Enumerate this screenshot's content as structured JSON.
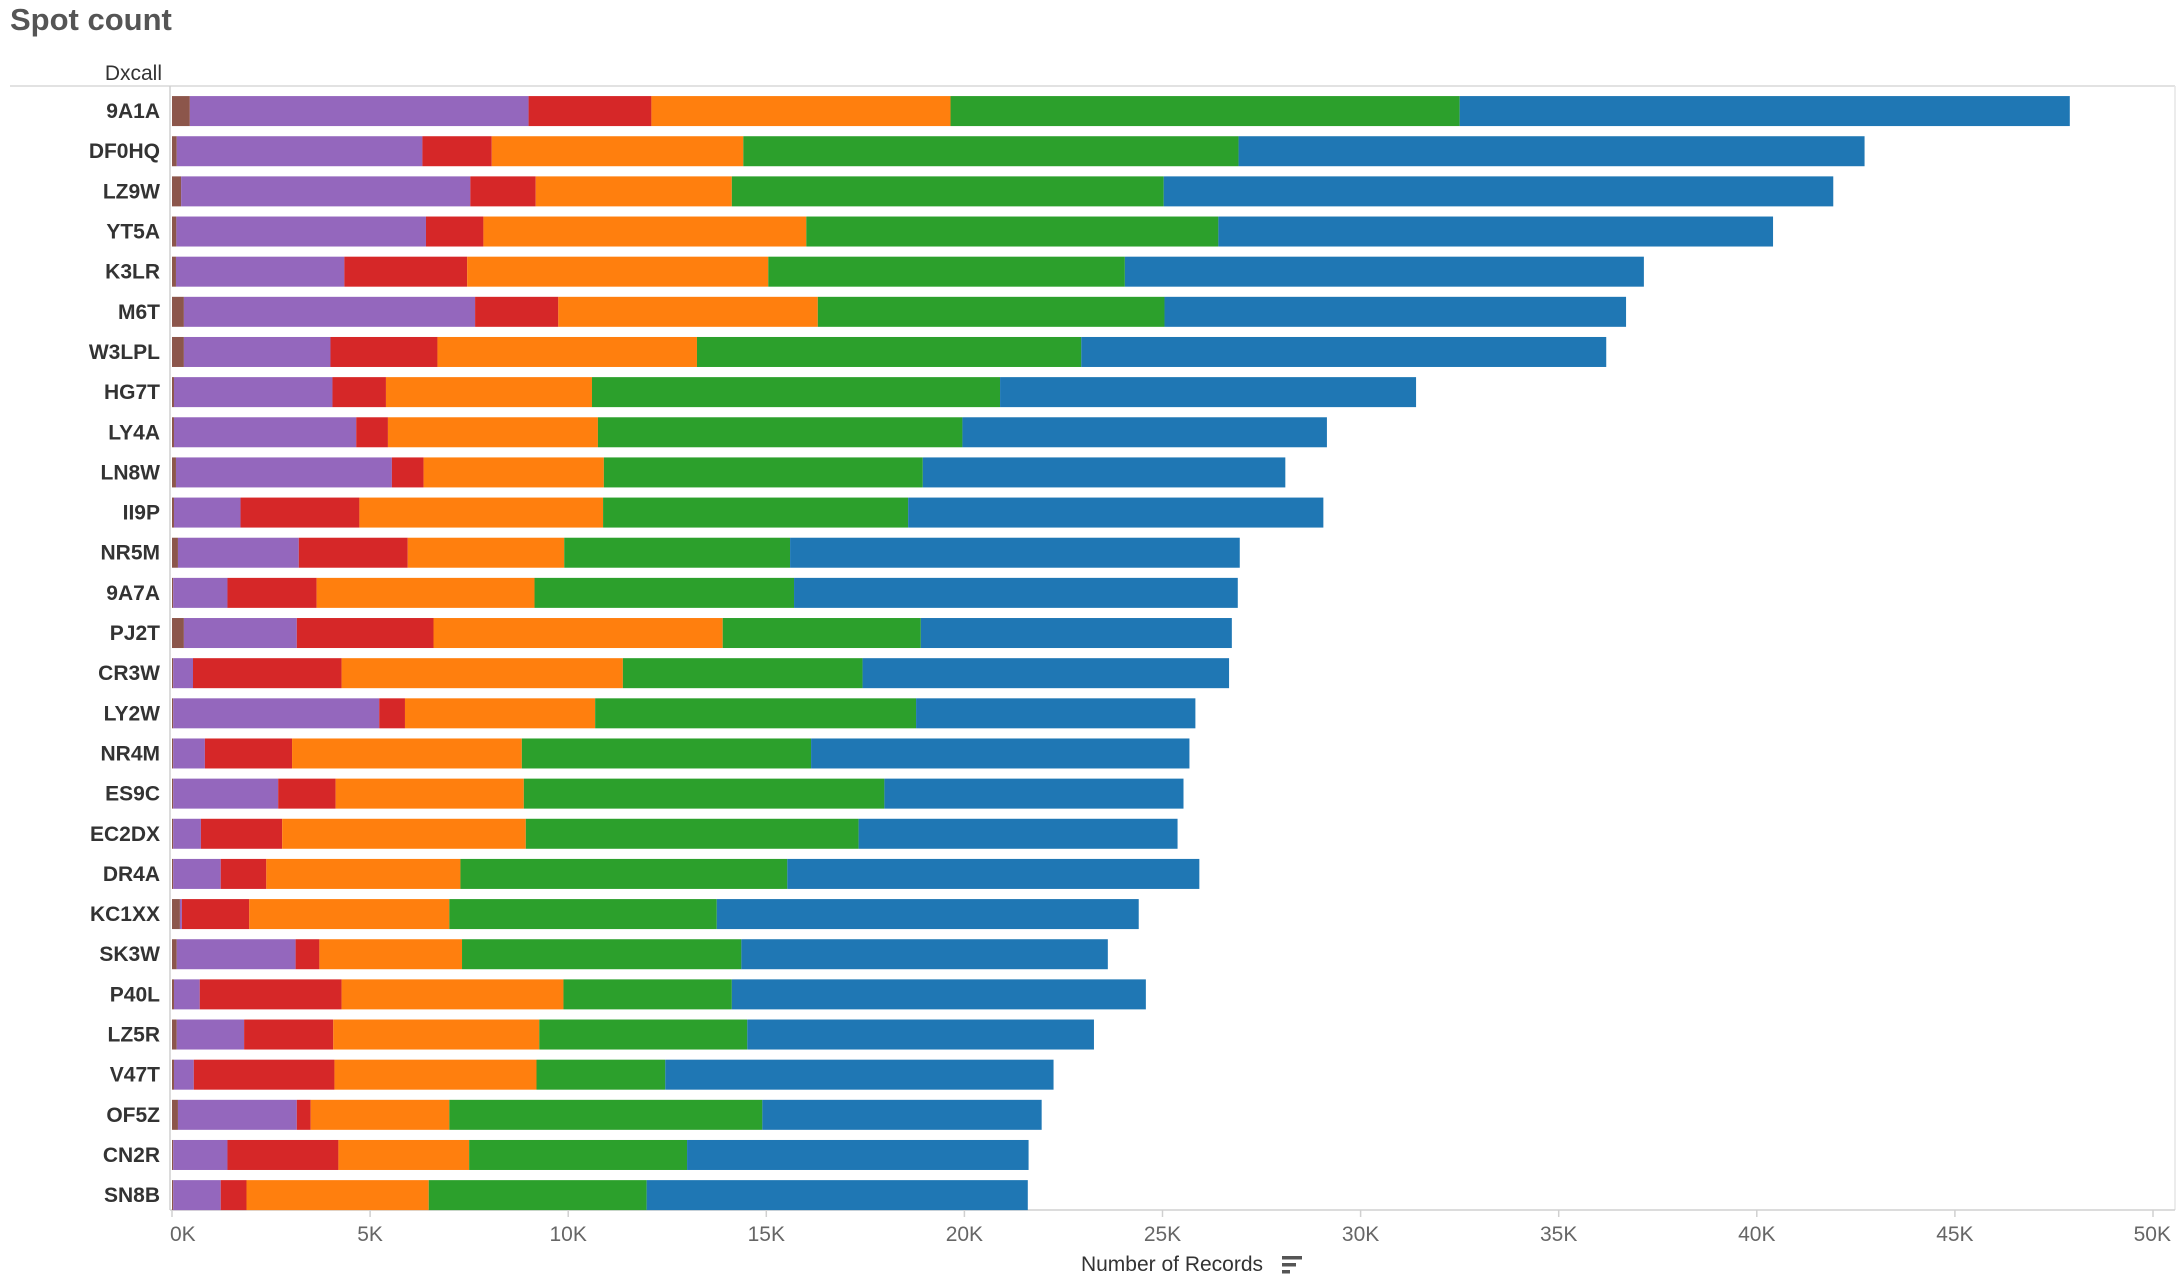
{
  "chart_data": {
    "type": "bar",
    "orientation": "horizontal",
    "stacked": true,
    "title": "Spot count",
    "row_header": "Dxcall",
    "xlabel": "Number of Records",
    "xlim": [
      0,
      50000
    ],
    "x_ticks": [
      {
        "value": 0,
        "label": "0K"
      },
      {
        "value": 5000,
        "label": "5K"
      },
      {
        "value": 10000,
        "label": "10K"
      },
      {
        "value": 15000,
        "label": "15K"
      },
      {
        "value": 20000,
        "label": "20K"
      },
      {
        "value": 25000,
        "label": "25K"
      },
      {
        "value": 30000,
        "label": "30K"
      },
      {
        "value": 35000,
        "label": "35K"
      },
      {
        "value": 40000,
        "label": "40K"
      },
      {
        "value": 45000,
        "label": "45K"
      },
      {
        "value": 50000,
        "label": "50K"
      }
    ],
    "grid": false,
    "sort_icon": "sort-descending-icon",
    "categories": [
      "9A1A",
      "DF0HQ",
      "LZ9W",
      "YT5A",
      "K3LR",
      "M6T",
      "W3LPL",
      "HG7T",
      "LY4A",
      "LN8W",
      "II9P",
      "NR5M",
      "9A7A",
      "PJ2T",
      "CR3W",
      "LY2W",
      "NR4M",
      "ES9C",
      "EC2DX",
      "DR4A",
      "KC1XX",
      "SK3W",
      "P40L",
      "LZ5R",
      "V47T",
      "OF5Z",
      "CN2R",
      "SN8B"
    ],
    "series": [
      {
        "color": "#8c564b",
        "values": [
          450,
          120,
          230,
          110,
          100,
          300,
          300,
          50,
          50,
          100,
          50,
          150,
          30,
          300,
          30,
          30,
          30,
          30,
          30,
          30,
          200,
          120,
          50,
          120,
          50,
          150,
          30,
          30
        ]
      },
      {
        "color": "#9467bd",
        "values": [
          8550,
          6200,
          7300,
          6300,
          4250,
          7350,
          3700,
          4000,
          4600,
          5450,
          1680,
          3050,
          1370,
          2850,
          500,
          5200,
          800,
          2650,
          700,
          1200,
          50,
          3000,
          650,
          1700,
          500,
          3000,
          1370,
          1200
        ]
      },
      {
        "color": "#d62728",
        "values": [
          3100,
          1750,
          1650,
          1450,
          3100,
          2100,
          2700,
          1350,
          800,
          800,
          3000,
          2750,
          2250,
          3450,
          3750,
          650,
          2200,
          1450,
          2050,
          1150,
          1700,
          600,
          3580,
          2250,
          3550,
          350,
          2800,
          650
        ]
      },
      {
        "color": "#ff7f0e",
        "values": [
          7550,
          6350,
          4950,
          8150,
          7600,
          6550,
          6550,
          5200,
          5300,
          4550,
          6150,
          3950,
          5500,
          7300,
          7100,
          4800,
          5800,
          4750,
          6150,
          4900,
          5050,
          3600,
          5600,
          5200,
          5100,
          3500,
          3300,
          4600
        ]
      },
      {
        "color": "#2ca02c",
        "values": [
          12850,
          12500,
          10900,
          10400,
          9000,
          8750,
          9700,
          10300,
          9200,
          8050,
          7700,
          5700,
          6550,
          5000,
          6050,
          8100,
          7300,
          9100,
          8400,
          8250,
          6750,
          7050,
          4250,
          5250,
          3250,
          7900,
          5500,
          5500
        ]
      },
      {
        "color": "#1f77b4",
        "values": [
          15400,
          15800,
          16900,
          14000,
          13100,
          11650,
          13250,
          10500,
          9200,
          9150,
          10480,
          11350,
          11200,
          7850,
          9250,
          7050,
          9550,
          7550,
          8050,
          10400,
          10650,
          9250,
          10450,
          8750,
          9800,
          7050,
          8620,
          9620
        ]
      }
    ]
  }
}
